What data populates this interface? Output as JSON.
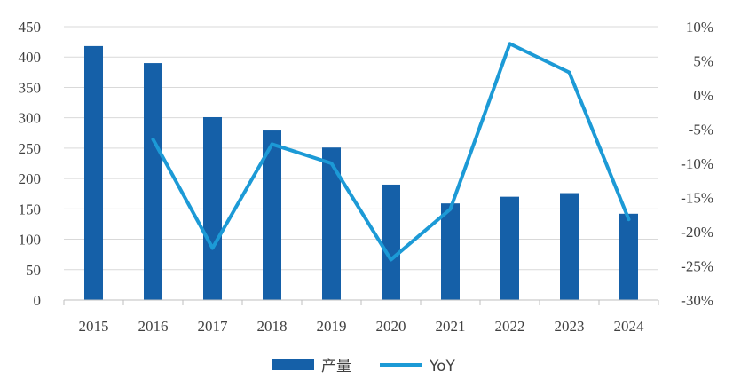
{
  "chart_data": {
    "type": "bar",
    "categories": [
      "2015",
      "2016",
      "2017",
      "2018",
      "2019",
      "2020",
      "2021",
      "2022",
      "2023",
      "2024"
    ],
    "series": [
      {
        "name": "产量",
        "type": "bar",
        "axis": "left",
        "color": "#1560A8",
        "values": [
          418,
          390,
          301,
          279,
          251,
          190,
          159,
          170,
          176,
          142
        ]
      },
      {
        "name": "YoY",
        "type": "line",
        "axis": "right",
        "color": "#1C9AD6",
        "values": [
          null,
          -6.5,
          -22.4,
          -7.2,
          -10.0,
          -24.1,
          -16.7,
          7.5,
          3.3,
          -18.2
        ]
      }
    ],
    "left_axis": {
      "min": 0,
      "max": 450,
      "step": 50,
      "tick_labels": [
        "0",
        "50",
        "100",
        "150",
        "200",
        "250",
        "300",
        "350",
        "400",
        "450"
      ]
    },
    "right_axis": {
      "min": -30,
      "max": 10,
      "step": 5,
      "tick_labels": [
        "-30%",
        "-25%",
        "-20%",
        "-15%",
        "-10%",
        "-5%",
        "0%",
        "5%",
        "10%"
      ]
    },
    "grid": true,
    "legend_position": "bottom-center"
  }
}
